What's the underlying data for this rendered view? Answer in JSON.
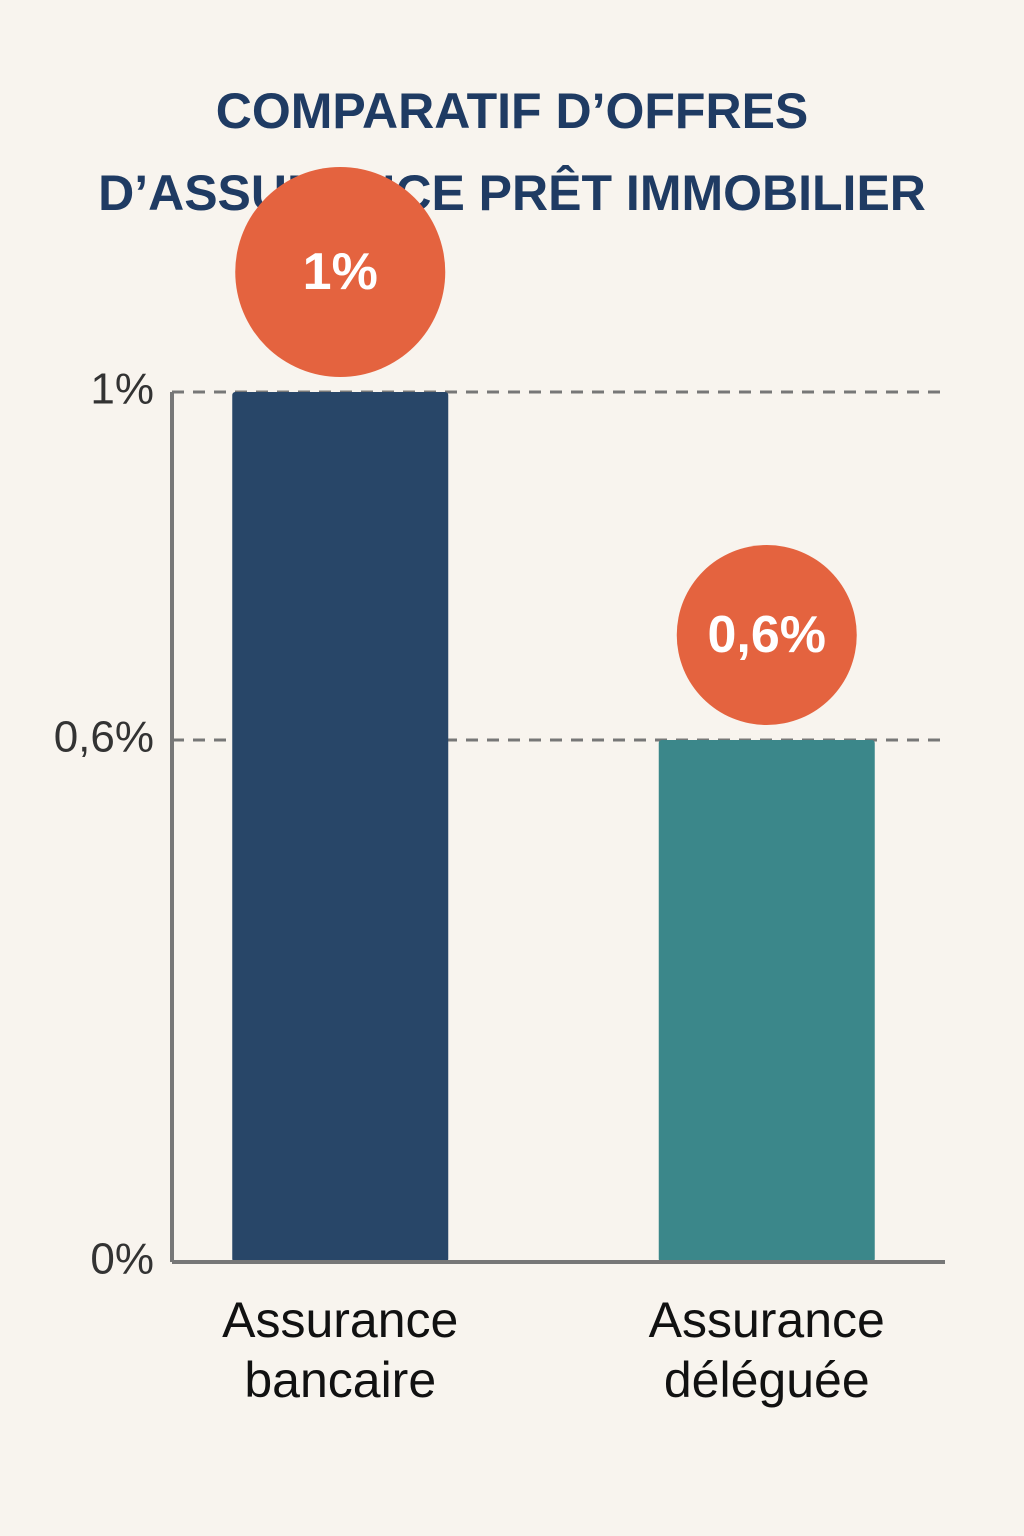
{
  "chart_data": {
    "type": "bar",
    "title": "COMPARATIF D’OFFRES D’ASSURANCE PRÊT IMMOBILIER",
    "categories": [
      "Assurance bancaire",
      "Assurance déléguée"
    ],
    "values": [
      1,
      0.6
    ],
    "value_labels": [
      "1%",
      "0,6%"
    ],
    "colors": [
      "#284668",
      "#3b878a"
    ],
    "label_color": "#e4633f",
    "ylim": [
      0,
      1
    ],
    "yticks": [
      {
        "value": 0,
        "label": "0%"
      },
      {
        "value": 0.6,
        "label": "0,6%"
      },
      {
        "value": 1,
        "label": "1%"
      }
    ],
    "grid": true
  }
}
